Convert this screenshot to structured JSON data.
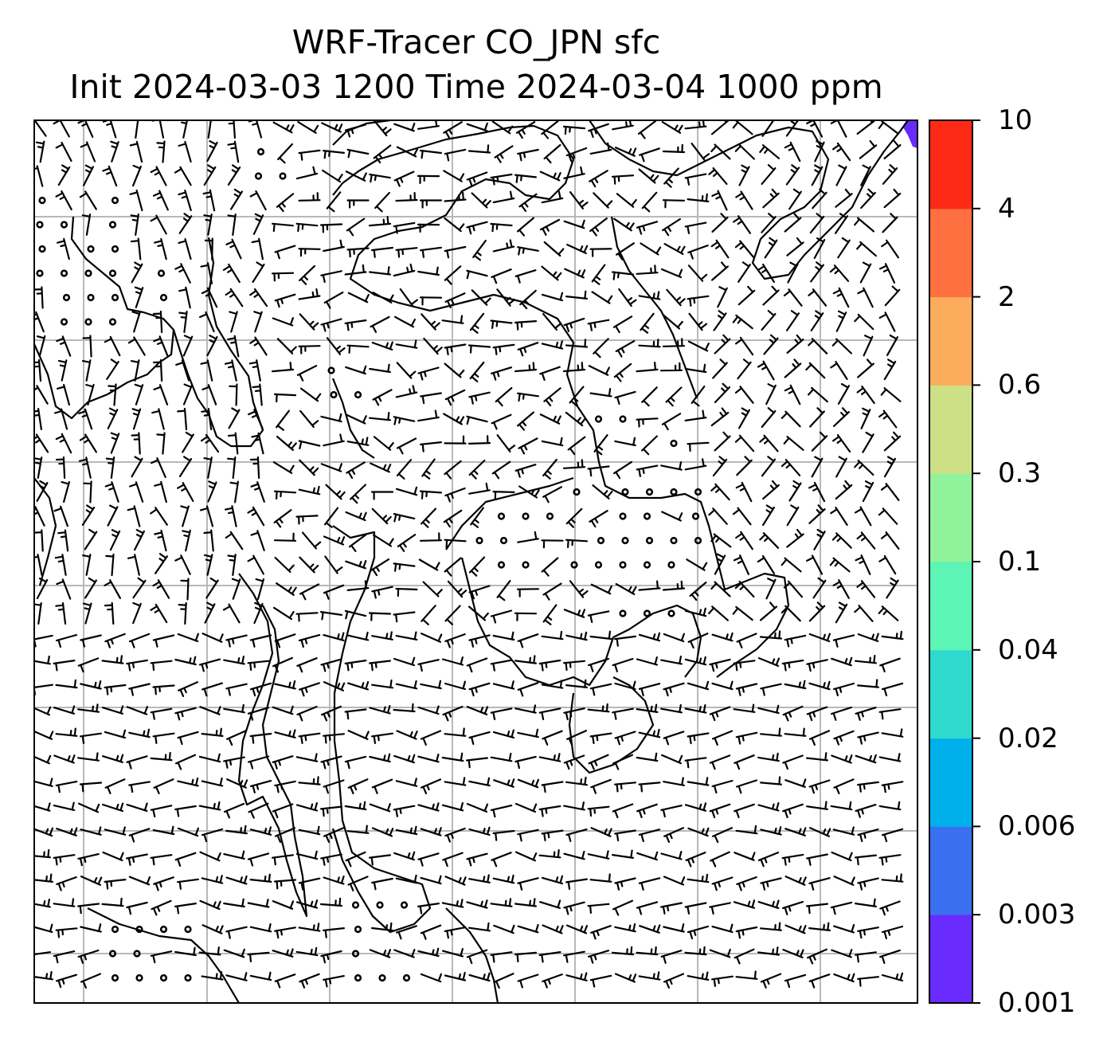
{
  "title_line1": "WRF-Tracer CO_JPN sfc",
  "title_line2": "Init 2024-03-03 1200 Time 2024-03-04 1000 ppm",
  "colorbar": {
    "labels": [
      "0.001",
      "0.003",
      "0.006",
      "0.02",
      "0.04",
      "0.1",
      "0.3",
      "0.6",
      "2",
      "4",
      "10"
    ],
    "colors": [
      "#6a2bff",
      "#3a6ff0",
      "#00b0ea",
      "#2fdacd",
      "#5cf5b5",
      "#90f29a",
      "#cde085",
      "#fbac5d",
      "#ff7040",
      "#ff2a16"
    ]
  },
  "field_colors": {
    "ocean_land_background": "#ffffff",
    "tracer_patch_ne_corner": "#6a2bff"
  },
  "overlays": [
    "coastlines",
    "lat-lon-gridlines",
    "wind-barbs",
    "calm-wind-circles"
  ]
}
